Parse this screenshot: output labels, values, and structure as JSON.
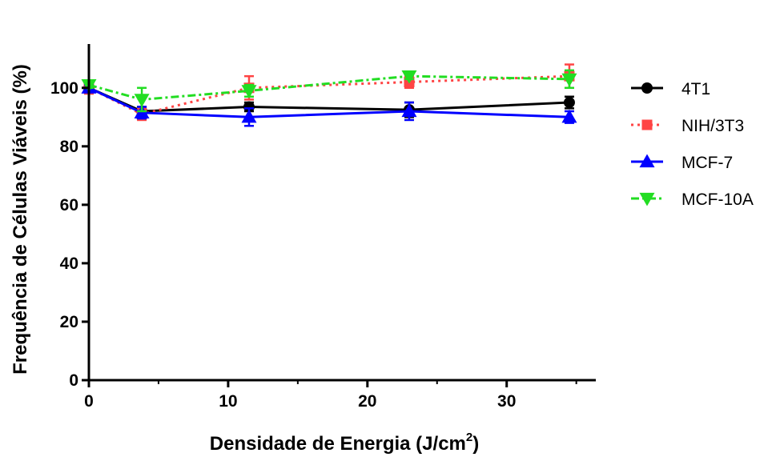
{
  "chart_data": {
    "type": "line",
    "xlabel_main": "Densidade de Energia (J/cm",
    "xlabel_sup": "2",
    "xlabel_close": ")",
    "ylabel": "Frequência de Células Viáveis (%)",
    "xlim": [
      0,
      36
    ],
    "ylim": [
      0,
      115
    ],
    "x_ticks": [
      0,
      10,
      20,
      30
    ],
    "y_ticks": [
      0,
      20,
      40,
      60,
      80,
      100
    ],
    "x": [
      0,
      3.8,
      11.5,
      23,
      34.5
    ],
    "grid": false,
    "legend_position": "right",
    "series": [
      {
        "name": "4T1",
        "values": [
          100,
          92,
          93.5,
          92.5,
          95
        ],
        "errors": [
          1,
          1.5,
          1.5,
          2.5,
          2
        ],
        "color": "#000000",
        "marker": "circle",
        "dash": "solid"
      },
      {
        "name": "NIH/3T3",
        "values": [
          100,
          91,
          100,
          102,
          104
        ],
        "errors": [
          2,
          2,
          4,
          2,
          4
        ],
        "color": "#ff4444",
        "marker": "square",
        "dash": "dotted"
      },
      {
        "name": "MCF-7",
        "values": [
          100,
          91.5,
          90,
          92,
          90
        ],
        "errors": [
          1,
          2,
          3,
          3,
          2
        ],
        "color": "#0000ff",
        "marker": "triangle-up",
        "dash": "solid"
      },
      {
        "name": "MCF-10A",
        "values": [
          101,
          96,
          99,
          104,
          103
        ],
        "errors": [
          1,
          4,
          2,
          1,
          3
        ],
        "color": "#22dd22",
        "marker": "triangle-down",
        "dash": "dashdot"
      }
    ]
  }
}
